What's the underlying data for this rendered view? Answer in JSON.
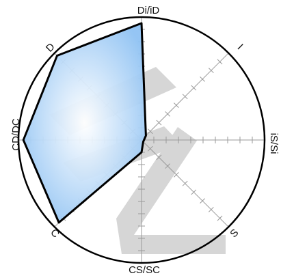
{
  "axes": [
    {
      "key": "di",
      "label": "Di/iD"
    },
    {
      "key": "i",
      "label": "I"
    },
    {
      "key": "isi",
      "label": "iS/Si"
    },
    {
      "key": "s",
      "label": "S"
    },
    {
      "key": "cs",
      "label": "CS/SC"
    },
    {
      "key": "c",
      "label": "C"
    },
    {
      "key": "cd",
      "label": "CD/DC"
    },
    {
      "key": "d",
      "label": "D"
    }
  ],
  "profile_values": [
    0.95,
    0.05,
    0.0,
    0.0,
    0.1,
    0.95,
    0.96,
    0.97
  ],
  "ticks_per_axis": 10,
  "colors": {
    "circle": "#000000",
    "axis": "#9a9a9a",
    "fill_center": "#ffffff",
    "fill_edge": "#8fc2f3",
    "outline": "#000000",
    "watermark": "#cfcfcf"
  },
  "watermark": {
    "description": "large grey DISC logo mark"
  }
}
